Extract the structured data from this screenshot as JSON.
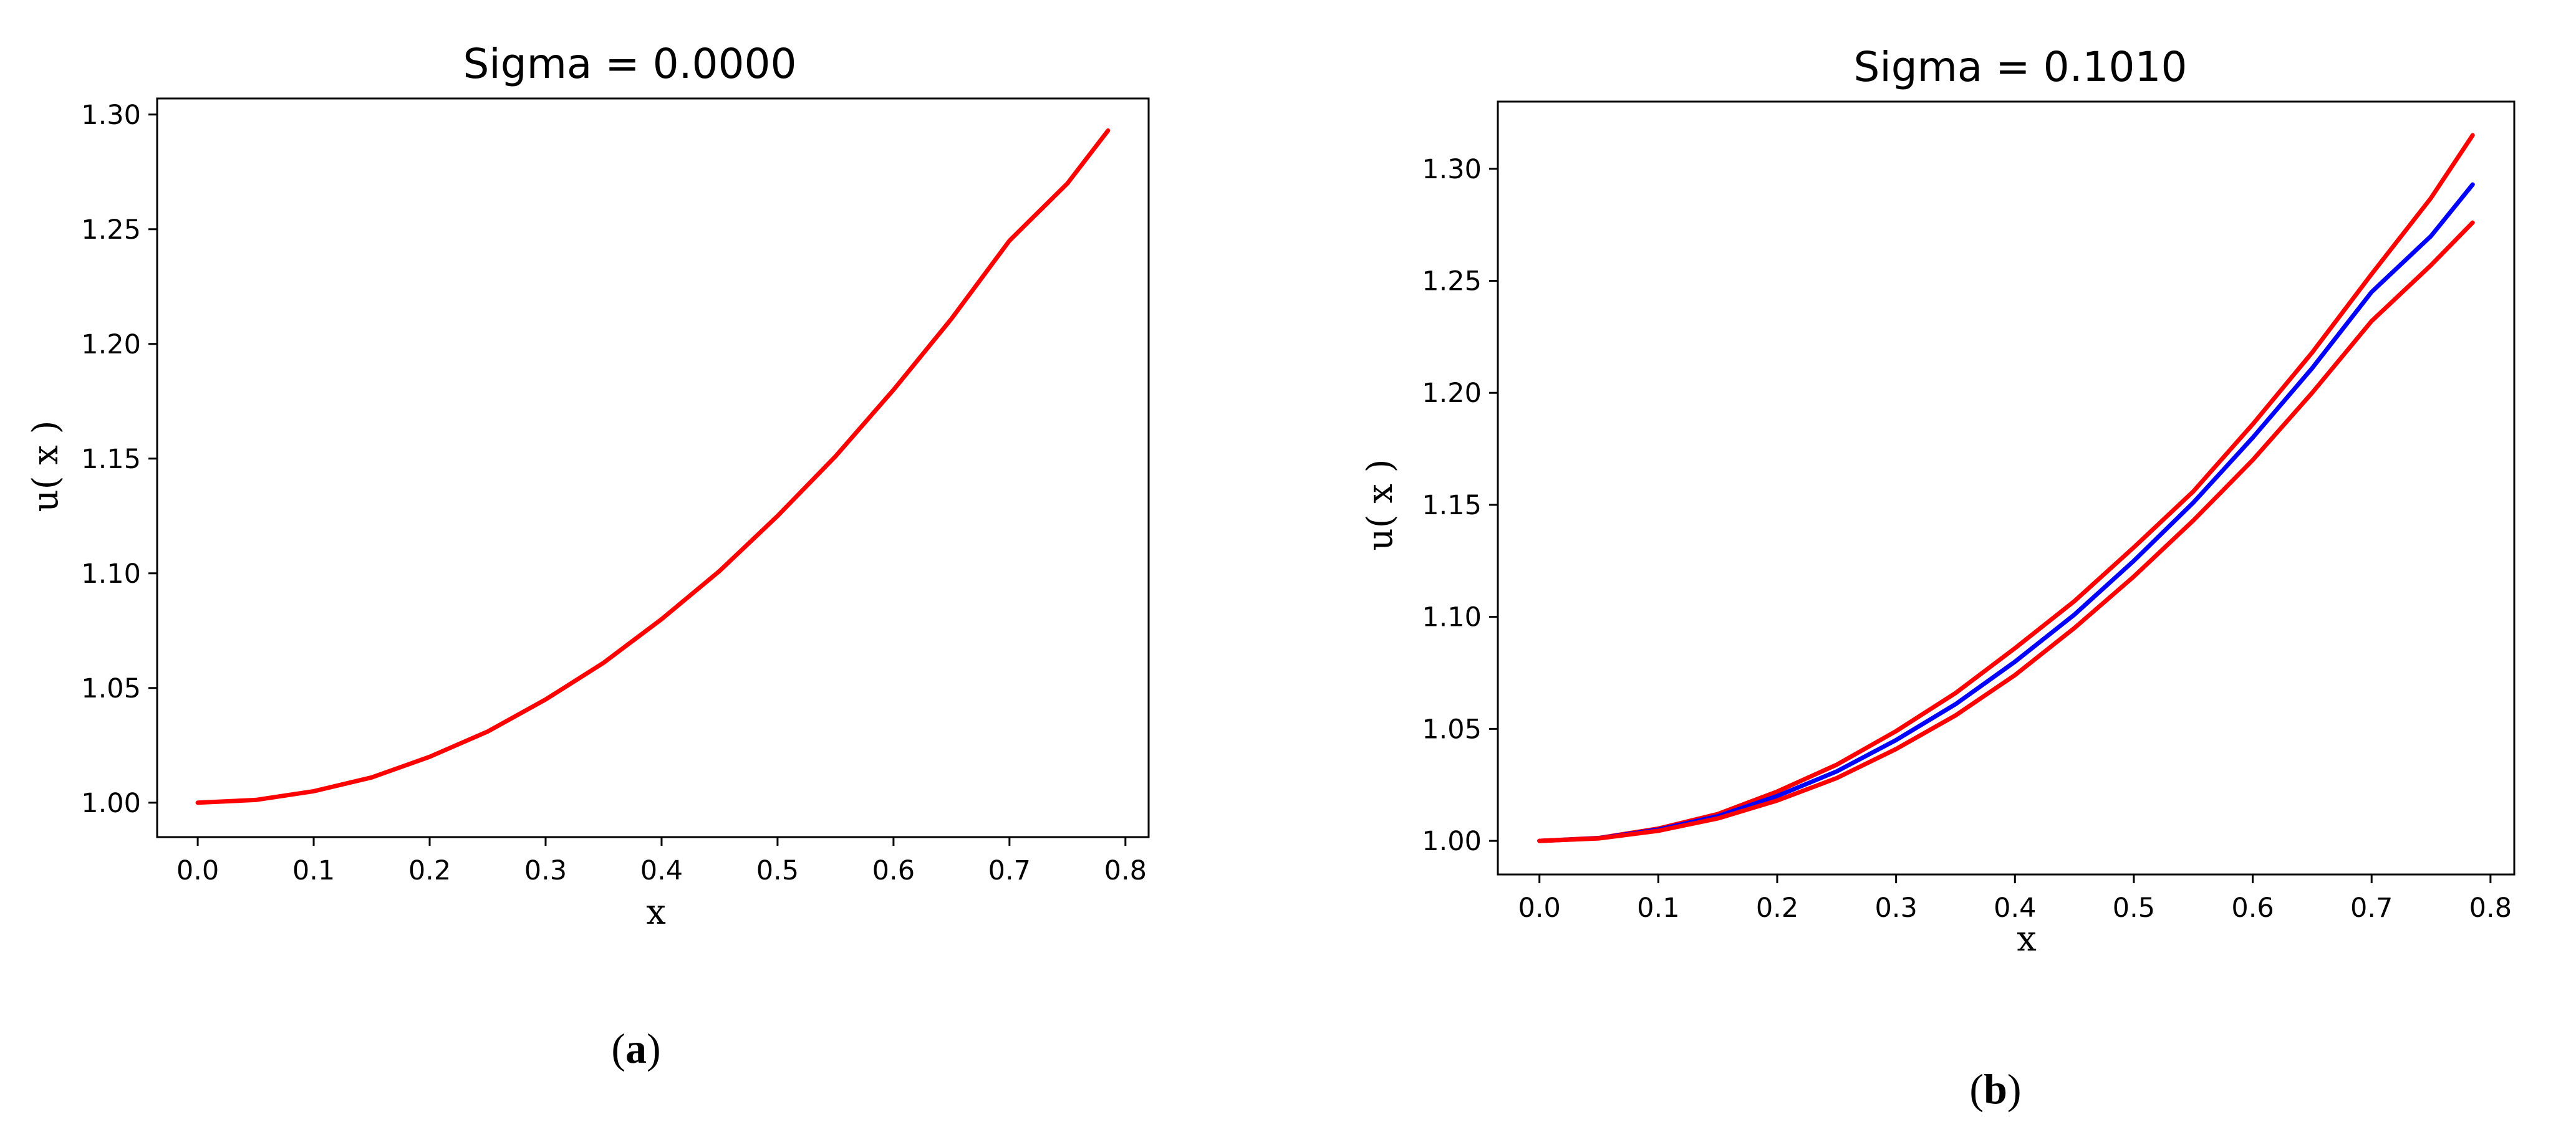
{
  "chart_data": [
    {
      "type": "line",
      "panel_label": "a",
      "title": "Sigma = 0.0000",
      "xlabel": "x",
      "ylabel": "u( x )",
      "xlim": [
        -0.035,
        0.82
      ],
      "ylim": [
        0.985,
        1.307
      ],
      "xticks": [
        0.0,
        0.1,
        0.2,
        0.3,
        0.4,
        0.5,
        0.6,
        0.7,
        0.8
      ],
      "xtick_labels": [
        "0.0",
        "0.1",
        "0.2",
        "0.3",
        "0.4",
        "0.5",
        "0.6",
        "0.7",
        "0.8"
      ],
      "yticks": [
        1.0,
        1.05,
        1.1,
        1.15,
        1.2,
        1.25,
        1.3
      ],
      "ytick_labels": [
        "1.00",
        "1.05",
        "1.10",
        "1.15",
        "1.20",
        "1.25",
        "1.30"
      ],
      "grid": false,
      "series": [
        {
          "color": "#ff0000",
          "x": [
            0.0,
            0.05,
            0.1,
            0.15,
            0.2,
            0.25,
            0.3,
            0.35,
            0.4,
            0.45,
            0.5,
            0.55,
            0.6,
            0.65,
            0.7,
            0.75,
            0.785
          ],
          "y": [
            1.0,
            1.0012,
            1.005,
            1.011,
            1.02,
            1.031,
            1.045,
            1.061,
            1.08,
            1.101,
            1.125,
            1.151,
            1.18,
            1.211,
            1.245,
            1.27,
            1.293
          ]
        }
      ]
    },
    {
      "type": "line",
      "panel_label": "b",
      "title": "Sigma = 0.1010",
      "xlabel": "x",
      "ylabel": "u( x )",
      "xlim": [
        -0.035,
        0.82
      ],
      "ylim": [
        0.985,
        1.33
      ],
      "xticks": [
        0.0,
        0.1,
        0.2,
        0.3,
        0.4,
        0.5,
        0.6,
        0.7,
        0.8
      ],
      "xtick_labels": [
        "0.0",
        "0.1",
        "0.2",
        "0.3",
        "0.4",
        "0.5",
        "0.6",
        "0.7",
        "0.8"
      ],
      "yticks": [
        1.0,
        1.05,
        1.1,
        1.15,
        1.2,
        1.25,
        1.3
      ],
      "ytick_labels": [
        "1.00",
        "1.05",
        "1.10",
        "1.15",
        "1.20",
        "1.25",
        "1.30"
      ],
      "grid": false,
      "series": [
        {
          "color": "#ff0000",
          "x": [
            0.0,
            0.05,
            0.1,
            0.15,
            0.2,
            0.25,
            0.3,
            0.35,
            0.4,
            0.45,
            0.5,
            0.55,
            0.6,
            0.65,
            0.7,
            0.75,
            0.785
          ],
          "y": [
            1.0,
            1.0013,
            1.0055,
            1.012,
            1.022,
            1.034,
            1.049,
            1.066,
            1.086,
            1.107,
            1.131,
            1.156,
            1.186,
            1.218,
            1.253,
            1.287,
            1.315
          ]
        },
        {
          "color": "#0000ff",
          "x": [
            0.0,
            0.05,
            0.1,
            0.15,
            0.2,
            0.25,
            0.3,
            0.35,
            0.4,
            0.45,
            0.5,
            0.55,
            0.6,
            0.65,
            0.7,
            0.75,
            0.785
          ],
          "y": [
            1.0,
            1.0012,
            1.005,
            1.011,
            1.02,
            1.031,
            1.045,
            1.061,
            1.08,
            1.101,
            1.125,
            1.151,
            1.18,
            1.211,
            1.245,
            1.27,
            1.293
          ]
        },
        {
          "color": "#ff0000",
          "x": [
            0.0,
            0.05,
            0.1,
            0.15,
            0.2,
            0.25,
            0.3,
            0.35,
            0.4,
            0.45,
            0.5,
            0.55,
            0.6,
            0.65,
            0.7,
            0.75,
            0.785
          ],
          "y": [
            1.0,
            1.0011,
            1.0045,
            1.01,
            1.018,
            1.028,
            1.041,
            1.056,
            1.074,
            1.095,
            1.118,
            1.143,
            1.17,
            1.2,
            1.232,
            1.257,
            1.276
          ]
        }
      ]
    }
  ]
}
